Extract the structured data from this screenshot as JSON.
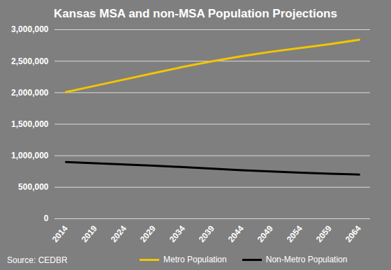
{
  "chart_data": {
    "type": "line",
    "title": "Kansas MSA and non-MSA Population Projections",
    "source": "Source: CEDBR",
    "categories": [
      "2014",
      "2019",
      "2024",
      "2029",
      "2034",
      "2039",
      "2044",
      "2049",
      "2054",
      "2059",
      "2064"
    ],
    "series": [
      {
        "name": "Metro Population",
        "color": "#f2c500",
        "values": [
          2010000,
          2110000,
          2210000,
          2310000,
          2410000,
          2500000,
          2580000,
          2650000,
          2710000,
          2770000,
          2840000
        ]
      },
      {
        "name": "Non-Metro Population",
        "color": "#000000",
        "values": [
          900000,
          880000,
          860000,
          840000,
          820000,
          795000,
          770000,
          750000,
          730000,
          715000,
          700000
        ]
      }
    ],
    "ylim": [
      0,
      3000000
    ],
    "yticks": [
      0,
      {
        "value": 500000,
        "label": "500,000"
      },
      {
        "value": 1000000,
        "label": "1,000,000"
      },
      {
        "value": 1500000,
        "label": "1,500,000"
      },
      {
        "value": 2000000,
        "label": "2,000,000"
      },
      {
        "value": 2500000,
        "label": "2,500,000"
      },
      {
        "value": 3000000,
        "label": "3,000,000"
      }
    ],
    "grid": true,
    "legend": "bottom"
  }
}
